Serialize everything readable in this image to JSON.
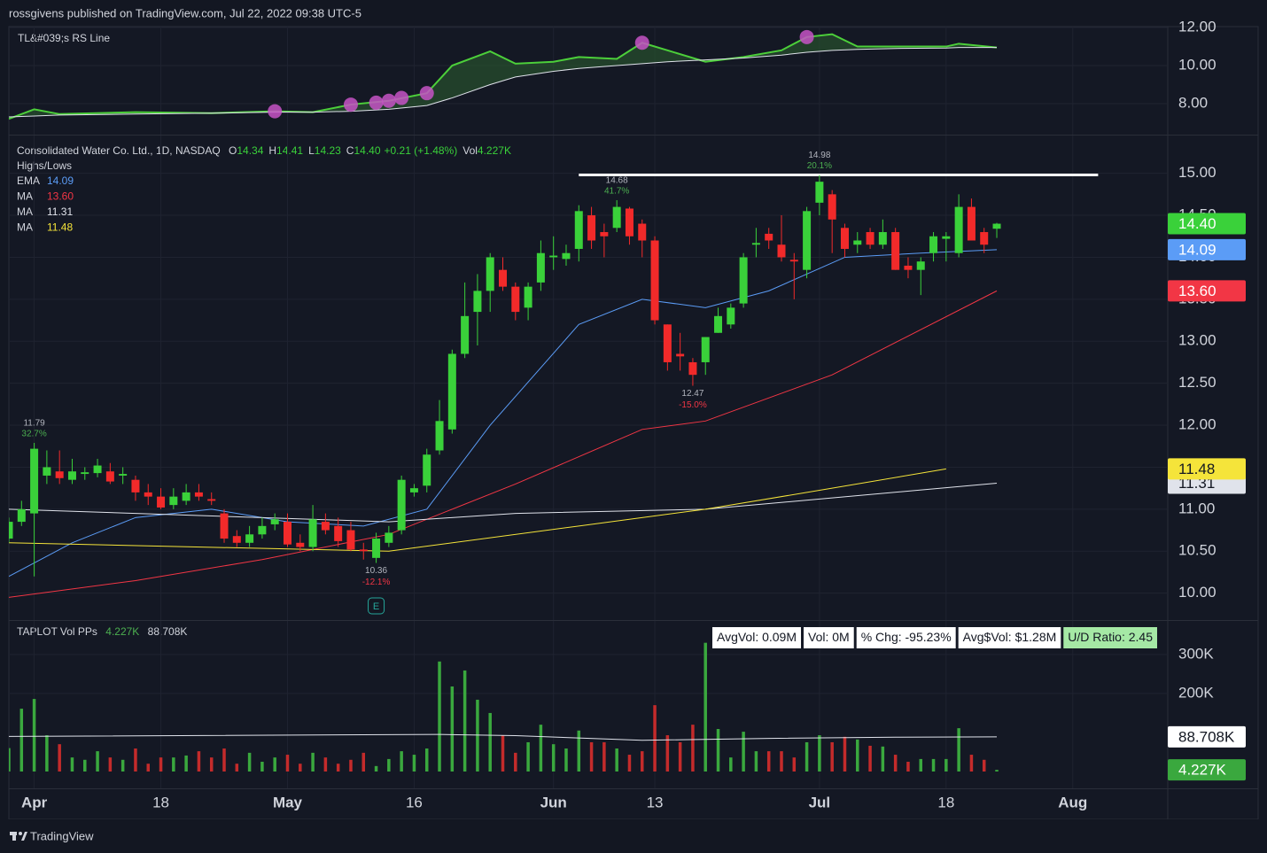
{
  "header": {
    "byline": "rossgivens published on TradingView.com, Jul 22, 2022 09:38 UTC-5",
    "brand": "TradingView"
  },
  "chart_data": [
    {
      "type": "line",
      "title": "TL&#039;s RS Line",
      "x": [
        0,
        2,
        4,
        10,
        16,
        21,
        24,
        27,
        30,
        33,
        35,
        38,
        40,
        43,
        45,
        48,
        50,
        52,
        55,
        58,
        61,
        63,
        65,
        67,
        70,
        74,
        75,
        78
      ],
      "series": [
        {
          "color": "#4ccf3a",
          "values": [
            7.2,
            7.7,
            7.45,
            7.55,
            7.5,
            7.6,
            7.55,
            7.95,
            8.15,
            8.55,
            10.0,
            10.75,
            10.1,
            10.2,
            10.45,
            10.35,
            11.2,
            10.8,
            10.2,
            10.45,
            10.8,
            11.5,
            11.65,
            11.0,
            11.0,
            11.0,
            11.15,
            10.95
          ]
        },
        {
          "color": "#e0e3eb",
          "values": [
            7.3,
            7.35,
            7.4,
            7.45,
            7.5,
            7.55,
            7.55,
            7.6,
            7.7,
            7.9,
            8.3,
            9.0,
            9.4,
            9.7,
            9.85,
            10.0,
            10.1,
            10.2,
            10.3,
            10.4,
            10.55,
            10.7,
            10.8,
            10.85,
            10.9,
            10.92,
            10.95,
            10.95
          ]
        }
      ],
      "fill": "#2a5a2e",
      "highlights": {
        "color": "#c653c6",
        "x": [
          21,
          27,
          29,
          30,
          31,
          33,
          50,
          63
        ],
        "values": [
          7.6,
          7.95,
          8.05,
          8.15,
          8.3,
          8.55,
          11.2,
          11.5
        ]
      },
      "ylim": [
        6.37,
        12.05
      ],
      "yticks": [
        {
          "value": 8,
          "label": "8.00"
        },
        {
          "value": 10,
          "label": "10.00"
        },
        {
          "value": 12,
          "label": "12.00"
        }
      ]
    },
    {
      "type": "candlestick",
      "title": "Consolidated Water Co. Ltd., 1D, NASDAQ",
      "ohlc_legend": [
        {
          "name": "O",
          "value": 14.34,
          "label": "14.34"
        },
        {
          "name": "H",
          "value": 14.41,
          "label": "14.41"
        },
        {
          "name": "L",
          "value": 14.23,
          "label": "14.23"
        },
        {
          "name": "C",
          "value": 14.4,
          "label": "14.40"
        }
      ],
      "change": "+0.21 (+1.48%)",
      "volume_legend": {
        "name": "Vol",
        "value": 4227,
        "label": "4.227K"
      },
      "subtitle": "Highs/Lows",
      "up_color": "#3ad13a",
      "down_color": "#f22a2a",
      "x": [
        0,
        1,
        2,
        3,
        4,
        5,
        6,
        7,
        8,
        9,
        10,
        11,
        12,
        13,
        14,
        15,
        16,
        17,
        18,
        19,
        20,
        21,
        22,
        23,
        24,
        25,
        26,
        27,
        28,
        29,
        30,
        31,
        32,
        33,
        34,
        35,
        36,
        37,
        38,
        39,
        40,
        41,
        42,
        43,
        44,
        45,
        46,
        47,
        48,
        49,
        50,
        51,
        52,
        53,
        54,
        55,
        56,
        57,
        58,
        59,
        60,
        61,
        62,
        63,
        64,
        65,
        66,
        67,
        68,
        69,
        70,
        71,
        72,
        73,
        74,
        75,
        76,
        77,
        78
      ],
      "open": [
        10.65,
        10.85,
        10.95,
        11.4,
        11.45,
        11.35,
        11.42,
        11.43,
        11.45,
        11.4,
        11.35,
        11.2,
        11.15,
        11.05,
        11.1,
        11.2,
        11.12,
        10.95,
        10.68,
        10.6,
        10.7,
        10.82,
        10.85,
        10.6,
        10.55,
        10.85,
        10.8,
        10.75,
        10.52,
        10.42,
        10.6,
        10.75,
        11.2,
        11.28,
        11.7,
        11.95,
        12.85,
        13.35,
        13.6,
        13.85,
        13.65,
        13.4,
        13.7,
        14.0,
        13.98,
        14.1,
        14.5,
        14.3,
        14.35,
        14.58,
        14.4,
        14.2,
        13.2,
        12.85,
        12.75,
        12.75,
        13.1,
        13.2,
        13.45,
        14.15,
        14.28,
        14.15,
        13.97,
        13.85,
        14.65,
        14.75,
        14.35,
        14.15,
        14.3,
        14.15,
        14.3,
        13.9,
        13.85,
        14.05,
        14.22,
        14.05,
        14.6,
        14.3,
        14.34
      ],
      "high": [
        10.9,
        11.1,
        11.79,
        11.7,
        11.7,
        11.6,
        11.5,
        11.6,
        11.55,
        11.5,
        11.4,
        11.3,
        11.25,
        11.25,
        11.3,
        11.3,
        11.2,
        11.0,
        10.75,
        10.8,
        10.9,
        10.95,
        10.95,
        10.7,
        11.05,
        10.95,
        10.9,
        10.85,
        10.6,
        10.72,
        10.8,
        11.4,
        11.3,
        11.72,
        12.3,
        12.9,
        13.7,
        13.8,
        14.05,
        14.0,
        13.7,
        13.7,
        14.2,
        14.25,
        14.15,
        14.62,
        14.6,
        14.4,
        14.68,
        14.6,
        14.45,
        14.25,
        13.2,
        13.1,
        12.8,
        13.05,
        13.4,
        13.45,
        14.05,
        14.35,
        14.35,
        14.5,
        14.05,
        14.6,
        14.98,
        14.8,
        14.4,
        14.3,
        14.35,
        14.45,
        14.35,
        14.0,
        14.0,
        14.3,
        14.3,
        14.75,
        14.7,
        14.35,
        14.41
      ],
      "low": [
        10.6,
        10.8,
        10.2,
        11.3,
        11.3,
        11.3,
        11.35,
        11.38,
        11.3,
        11.3,
        11.1,
        11.05,
        11.0,
        11.0,
        11.05,
        11.1,
        11.05,
        10.6,
        10.55,
        10.55,
        10.65,
        10.75,
        10.55,
        10.5,
        10.5,
        10.7,
        10.55,
        10.5,
        10.4,
        10.36,
        10.55,
        10.7,
        11.15,
        11.2,
        11.65,
        11.9,
        12.8,
        12.95,
        13.35,
        13.6,
        13.25,
        13.25,
        13.6,
        13.85,
        13.9,
        13.95,
        14.1,
        14.0,
        14.3,
        14.15,
        14.0,
        13.2,
        12.65,
        12.65,
        12.47,
        12.6,
        13.1,
        13.15,
        13.4,
        14.0,
        14.1,
        13.95,
        13.5,
        13.75,
        14.5,
        14.05,
        14.0,
        14.05,
        14.1,
        14.1,
        13.85,
        13.75,
        13.55,
        13.95,
        13.95,
        14.0,
        14.2,
        14.05,
        14.23
      ],
      "close": [
        10.85,
        11.0,
        11.72,
        11.5,
        11.37,
        11.45,
        11.44,
        11.52,
        11.33,
        11.42,
        11.2,
        11.15,
        11.02,
        11.15,
        11.2,
        11.15,
        11.1,
        10.65,
        10.6,
        10.7,
        10.8,
        10.88,
        10.58,
        10.55,
        10.88,
        10.75,
        10.62,
        10.52,
        10.5,
        10.65,
        10.72,
        11.35,
        11.25,
        11.65,
        12.05,
        12.85,
        13.3,
        13.6,
        14.0,
        13.65,
        13.35,
        13.65,
        14.05,
        14.02,
        14.05,
        14.55,
        14.2,
        14.25,
        14.6,
        14.25,
        14.2,
        13.25,
        12.75,
        12.82,
        12.6,
        13.05,
        13.3,
        13.4,
        14.0,
        14.17,
        14.2,
        14.0,
        13.95,
        14.55,
        14.9,
        14.45,
        14.1,
        14.2,
        14.15,
        14.3,
        13.85,
        13.85,
        13.95,
        14.25,
        14.25,
        14.6,
        14.2,
        14.15,
        14.4
      ],
      "series": [
        {
          "name": "EMA",
          "color": "#5b9cf6",
          "x": [
            0,
            5,
            10,
            16,
            22,
            28,
            33,
            38,
            45,
            50,
            55,
            60,
            66,
            72,
            78
          ],
          "values": [
            10.2,
            10.6,
            10.9,
            11.0,
            10.85,
            10.8,
            11.0,
            12.0,
            13.2,
            13.5,
            13.4,
            13.6,
            14.0,
            14.05,
            14.09
          ],
          "last": {
            "value": 14.09,
            "label": "14.09"
          }
        },
        {
          "name": "MA",
          "color": "#f23645",
          "x": [
            0,
            10,
            20,
            30,
            40,
            50,
            55,
            65,
            78
          ],
          "values": [
            9.95,
            10.15,
            10.4,
            10.7,
            11.3,
            11.95,
            12.05,
            12.6,
            13.6
          ],
          "last": {
            "value": 13.6,
            "label": "13.60"
          }
        },
        {
          "name": "MA",
          "color": "#e0e3eb",
          "x": [
            0,
            20,
            30,
            40,
            55,
            78
          ],
          "values": [
            11.0,
            10.9,
            10.85,
            10.95,
            11.0,
            11.31
          ],
          "last": {
            "value": 11.31,
            "label": "11.31"
          }
        },
        {
          "name": "MA",
          "color": "#f5e43a",
          "x": [
            0,
            30,
            45,
            55,
            65,
            74
          ],
          "values": [
            10.6,
            10.5,
            10.8,
            11.0,
            11.25,
            11.48
          ],
          "last": {
            "value": 11.48,
            "label": "11.48"
          }
        }
      ],
      "annotations": [
        {
          "x": 2,
          "value": 11.79,
          "label": "11.79",
          "change": "32.7%",
          "position": "above",
          "color": "#4caf50"
        },
        {
          "x": 29,
          "value": 10.36,
          "label": "10.36",
          "change": "-12.1%",
          "position": "below",
          "color": "#f23645"
        },
        {
          "x": 48,
          "value": 14.68,
          "label": "14.68",
          "change": "41.7%",
          "position": "above",
          "color": "#4caf50"
        },
        {
          "x": 54,
          "value": 12.47,
          "label": "12.47",
          "change": "-15.0%",
          "position": "below",
          "color": "#f23645"
        },
        {
          "x": 64,
          "value": 14.98,
          "label": "14.98",
          "change": "20.1%",
          "position": "above",
          "color": "#4caf50"
        }
      ],
      "lines": [
        {
          "value": 14.98,
          "from": 45,
          "to": 86,
          "color": "#ffffff"
        }
      ],
      "events": [
        {
          "x": 29,
          "label": "E"
        }
      ],
      "xlim": [
        0,
        91.5
      ],
      "xticks": [
        {
          "value": 2,
          "label": "Apr"
        },
        {
          "value": 12,
          "label": "18"
        },
        {
          "value": 22,
          "label": "May"
        },
        {
          "value": 32,
          "label": "16"
        },
        {
          "value": 43,
          "label": "Jun"
        },
        {
          "value": 51,
          "label": "13"
        },
        {
          "value": 64,
          "label": "Jul"
        },
        {
          "value": 74,
          "label": "18"
        },
        {
          "value": 84,
          "label": "Aug"
        }
      ],
      "ylim": [
        9.68,
        15.45
      ],
      "yticks": [
        {
          "value": 10,
          "label": "10.00"
        },
        {
          "value": 10.5,
          "label": "10.50"
        },
        {
          "value": 11,
          "label": "11.00"
        },
        {
          "value": 11.5,
          "label": "11.50"
        },
        {
          "value": 12,
          "label": "12.00"
        },
        {
          "value": 12.5,
          "label": "12.50"
        },
        {
          "value": 13,
          "label": "13.00"
        },
        {
          "value": 13.5,
          "label": "13.50"
        },
        {
          "value": 14,
          "label": "14.00"
        },
        {
          "value": 14.5,
          "label": "14.50"
        },
        {
          "value": 15,
          "label": "15.00"
        }
      ],
      "grid": true
    },
    {
      "type": "bar",
      "title": "TAPLOT Vol PPs",
      "up_color": "#3aa83e",
      "down_color": "#c42b2b",
      "values": [
        60000,
        161000,
        186000,
        93000,
        70000,
        36000,
        30000,
        52000,
        36000,
        30000,
        59000,
        20000,
        36000,
        36000,
        41000,
        52000,
        36000,
        59000,
        20000,
        48000,
        25000,
        36000,
        43000,
        20000,
        48000,
        36000,
        20000,
        30000,
        48000,
        14000,
        32000,
        52000,
        43000,
        59000,
        282000,
        218000,
        259000,
        184000,
        150000,
        93000,
        48000,
        75000,
        120000,
        70000,
        59000,
        105000,
        75000,
        75000,
        59000,
        43000,
        52000,
        170000,
        93000,
        75000,
        120000,
        330000,
        109000,
        36000,
        102000,
        52000,
        52000,
        52000,
        36000,
        75000,
        93000,
        75000,
        89000,
        82000,
        66000,
        64000,
        43000,
        25000,
        32000,
        32000,
        32000,
        111000,
        43000,
        30000,
        4227
      ],
      "last": {
        "value": 4227,
        "label": "4.227K"
      },
      "average": {
        "color": "#e0e3eb",
        "x": [
          0,
          34,
          40,
          50,
          60,
          70,
          78
        ],
        "values": [
          90000,
          95000,
          92000,
          80000,
          85000,
          88000,
          88708
        ],
        "last": {
          "value": 88708,
          "label": "88.708K"
        }
      },
      "stats": [
        {
          "text": "AvgVol: 0.09M",
          "color": "#ffffff"
        },
        {
          "text": "Vol: 0M",
          "color": "#ffffff"
        },
        {
          "text": "% Chg: -95.23%",
          "color": "#ffffff"
        },
        {
          "text": "Avg$Vol: $1.28M",
          "color": "#ffffff"
        },
        {
          "text": "U/D Ratio: 2.45",
          "color": "#a5e8a5"
        }
      ],
      "ylim": [
        0,
        386000
      ],
      "yticks": [
        {
          "value": 200000,
          "label": "200K"
        },
        {
          "value": 300000,
          "label": "300K"
        }
      ]
    }
  ]
}
